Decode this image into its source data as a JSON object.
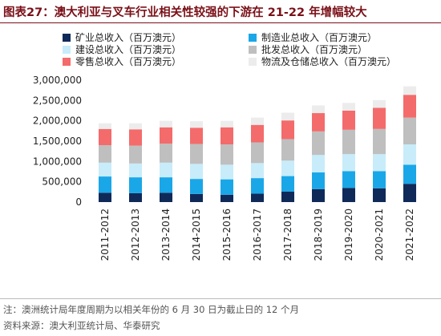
{
  "figure": {
    "title": "图表27：澳大利亚与叉车行业相关性较强的下游在 21-22 年增幅较大",
    "note": "注：澳洲统计局年度周期为以相关年份的 6 月 30 日为截止日的 12 个月",
    "source": "资料来源：澳大利亚统计局、华泰研究"
  },
  "chart_data": {
    "type": "bar",
    "stacked": true,
    "categories": [
      "2011-2012",
      "2012-2013",
      "2013-2014",
      "2014-2015",
      "2015-2016",
      "2016-2017",
      "2017-2018",
      "2018-2019",
      "2019-2020",
      "2020-2021",
      "2021-2022"
    ],
    "series": [
      {
        "name": "矿业总收入（百万澳元）",
        "color": "#0f2a59",
        "values": [
          230000,
          220000,
          230000,
          200000,
          180000,
          210000,
          260000,
          320000,
          350000,
          340000,
          450000
        ]
      },
      {
        "name": "制造业总收入（百万澳元）",
        "color": "#1aa7e8",
        "values": [
          400000,
          390000,
          380000,
          370000,
          380000,
          380000,
          380000,
          410000,
          410000,
          420000,
          470000
        ]
      },
      {
        "name": "建设总收入（百万澳元）",
        "color": "#c8ecfa",
        "values": [
          340000,
          340000,
          360000,
          370000,
          360000,
          370000,
          380000,
          430000,
          420000,
          420000,
          500000
        ]
      },
      {
        "name": "批发总收入（百万澳元）",
        "color": "#bfbfbf",
        "values": [
          430000,
          440000,
          470000,
          490000,
          500000,
          510000,
          530000,
          580000,
          600000,
          620000,
          660000
        ]
      },
      {
        "name": "零售总收入（百万澳元）",
        "color": "#f46b6b",
        "values": [
          400000,
          400000,
          400000,
          400000,
          420000,
          430000,
          460000,
          450000,
          470000,
          520000,
          560000
        ]
      },
      {
        "name": "物流及仓储总收入（百万澳元）",
        "color": "#ececec",
        "values": [
          140000,
          150000,
          160000,
          160000,
          160000,
          180000,
          190000,
          190000,
          190000,
          190000,
          210000
        ]
      }
    ],
    "ylim": [
      0,
      3000000
    ],
    "yticks": [
      "0",
      "500,000",
      "1,000,000",
      "1,500,000",
      "2,000,000",
      "2,500,000",
      "3,000,000"
    ],
    "grid": false,
    "legend_position": "top"
  }
}
